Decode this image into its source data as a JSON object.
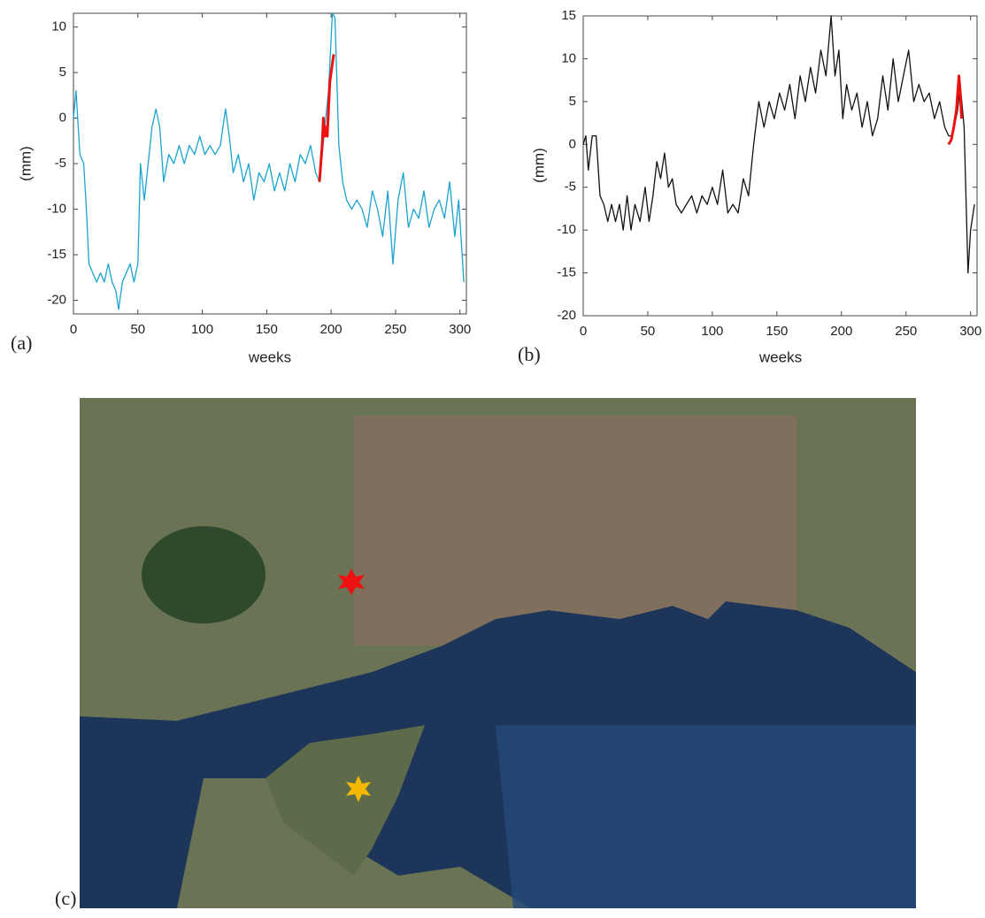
{
  "chart_data": [
    {
      "type": "line",
      "panel_label": "(a)",
      "ylabel": "(mm)",
      "xlabel": "weeks",
      "xlim": [
        0,
        305
      ],
      "ylim": [
        -21.5,
        11.5
      ],
      "xticks": [
        0,
        50,
        100,
        150,
        200,
        250,
        300
      ],
      "yticks": [
        -20,
        -15,
        -10,
        -5,
        0,
        5,
        10
      ],
      "series": [
        {
          "color": "#1aa3d1",
          "x": [
            0,
            2,
            5,
            8,
            10,
            12,
            15,
            18,
            21,
            24,
            27,
            30,
            33,
            35,
            38,
            41,
            44,
            47,
            50,
            52,
            55,
            58,
            61,
            64,
            67,
            70,
            74,
            78,
            82,
            86,
            90,
            94,
            98,
            102,
            106,
            110,
            114,
            118,
            121,
            124,
            128,
            132,
            136,
            140,
            144,
            148,
            152,
            156,
            160,
            164,
            168,
            172,
            176,
            180,
            184,
            188,
            191,
            198,
            201,
            203,
            206,
            209,
            212,
            216,
            220,
            224,
            228,
            232,
            236,
            240,
            244,
            248,
            252,
            256,
            260,
            264,
            268,
            272,
            276,
            280,
            284,
            288,
            292,
            296,
            299,
            303
          ],
          "values": [
            0,
            3,
            -4,
            -5,
            -10,
            -16,
            -17,
            -18,
            -17,
            -18,
            -16,
            -18,
            -19,
            -21,
            -18,
            -17,
            -16,
            -18,
            -16,
            -5,
            -9,
            -5,
            -1,
            1,
            -1,
            -7,
            -4,
            -5,
            -3,
            -5,
            -3,
            -4,
            -2,
            -4,
            -3,
            -4,
            -3,
            1,
            -2,
            -6,
            -4,
            -7,
            -5,
            -9,
            -6,
            -7,
            -5,
            -8,
            -6,
            -8,
            -5,
            -7,
            -4,
            -5,
            -3,
            -6,
            -7,
            3,
            11.5,
            11,
            -3,
            -7,
            -9,
            -10,
            -9,
            -10,
            -12,
            -8,
            -10,
            -13,
            -8,
            -16,
            -9,
            -6,
            -12,
            -10,
            -11,
            -8,
            -12,
            -10,
            -9,
            -11,
            -7,
            -13,
            -9,
            -18
          ]
        },
        {
          "color": "#ee1111",
          "width": 3,
          "x": [
            191,
            193,
            194,
            195,
            196,
            197,
            199,
            201,
            202
          ],
          "values": [
            -7,
            -3,
            0,
            -2,
            -1,
            -2,
            4,
            6,
            7
          ]
        }
      ]
    },
    {
      "type": "line",
      "panel_label": "(b)",
      "ylabel": "(mm)",
      "xlabel": "weeks",
      "xlim": [
        0,
        305
      ],
      "ylim": [
        -20,
        15
      ],
      "xticks": [
        0,
        50,
        100,
        150,
        200,
        250,
        300
      ],
      "yticks": [
        -20,
        -15,
        -10,
        -5,
        0,
        5,
        10,
        15
      ],
      "series": [
        {
          "color": "#111111",
          "x": [
            0,
            2,
            4,
            7,
            10,
            13,
            16,
            19,
            22,
            25,
            28,
            31,
            34,
            37,
            40,
            44,
            48,
            51,
            54,
            57,
            60,
            63,
            66,
            69,
            72,
            76,
            80,
            84,
            88,
            92,
            96,
            100,
            104,
            108,
            112,
            116,
            120,
            124,
            128,
            132,
            136,
            140,
            144,
            148,
            152,
            156,
            160,
            164,
            168,
            172,
            176,
            180,
            184,
            188,
            192,
            195,
            198,
            201,
            204,
            208,
            212,
            216,
            220,
            224,
            228,
            232,
            236,
            240,
            244,
            248,
            252,
            256,
            260,
            264,
            268,
            272,
            276,
            280,
            283,
            286,
            290,
            292,
            295,
            298,
            300,
            303
          ],
          "values": [
            0,
            1,
            -3,
            1,
            1,
            -6,
            -7,
            -9,
            -7,
            -9,
            -7,
            -10,
            -6,
            -10,
            -7,
            -9,
            -5,
            -9,
            -6,
            -2,
            -4,
            -1,
            -5,
            -4,
            -7,
            -8,
            -7,
            -6,
            -8,
            -6,
            -7,
            -5,
            -7,
            -3,
            -8,
            -7,
            -8,
            -4,
            -6,
            0,
            5,
            2,
            5,
            3,
            6,
            4,
            7,
            3,
            8,
            5,
            9,
            6,
            11,
            8,
            15,
            8,
            11,
            3,
            7,
            4,
            6,
            2,
            5,
            1,
            3,
            8,
            4,
            10,
            5,
            8,
            11,
            5,
            7,
            5,
            6,
            3,
            5,
            2,
            1,
            1,
            4,
            7,
            2,
            -15,
            -10,
            -7
          ]
        },
        {
          "color": "#ee1111",
          "width": 3,
          "x": [
            283,
            285,
            287,
            289,
            291,
            292,
            293
          ],
          "values": [
            0,
            0.5,
            2,
            4,
            8,
            6,
            3
          ]
        }
      ]
    }
  ],
  "map": {
    "label": "(c)"
  }
}
